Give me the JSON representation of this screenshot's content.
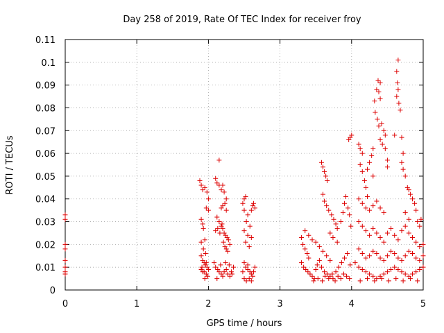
{
  "chart_data": {
    "type": "scatter",
    "title": "Day 258 of 2019, Rate Of TEC Index for receiver froy",
    "xlabel": "GPS time / hours",
    "ylabel": "ROTI / TECUs",
    "xlim": [
      0,
      5
    ],
    "ylim": [
      0,
      0.11
    ],
    "xticks": [
      0,
      1,
      2,
      3,
      4,
      5
    ],
    "xtick_labels": [
      "0",
      "1",
      "2",
      "3",
      "4",
      "5"
    ],
    "yticks": [
      0,
      0.01,
      0.02,
      0.03,
      0.04,
      0.05,
      0.06,
      0.07,
      0.08,
      0.09,
      0.1,
      0.11
    ],
    "ytick_labels": [
      "0",
      "0.01",
      "0.02",
      "0.03",
      "0.04",
      "0.05",
      "0.06",
      "0.07",
      "0.08",
      "0.09",
      "0.1",
      "0.11"
    ],
    "grid": true,
    "marker": "+",
    "color": "#dd0000",
    "series": [
      {
        "name": "ROTI",
        "points": [
          [
            0.0,
            0.033
          ],
          [
            0.0,
            0.031
          ],
          [
            0.0,
            0.02
          ],
          [
            0.0,
            0.018
          ],
          [
            0.0,
            0.013
          ],
          [
            0.0,
            0.01
          ],
          [
            0.0,
            0.008
          ],
          [
            0.0,
            0.007
          ],
          [
            1.88,
            0.048
          ],
          [
            1.9,
            0.046
          ],
          [
            1.92,
            0.044
          ],
          [
            1.95,
            0.045
          ],
          [
            1.98,
            0.043
          ],
          [
            2.0,
            0.04
          ],
          [
            1.97,
            0.036
          ],
          [
            2.0,
            0.035
          ],
          [
            1.9,
            0.031
          ],
          [
            1.92,
            0.029
          ],
          [
            1.93,
            0.027
          ],
          [
            1.95,
            0.022
          ],
          [
            1.9,
            0.021
          ],
          [
            1.93,
            0.018
          ],
          [
            1.96,
            0.016
          ],
          [
            1.9,
            0.015
          ],
          [
            1.92,
            0.013
          ],
          [
            1.94,
            0.012
          ],
          [
            1.96,
            0.011
          ],
          [
            1.98,
            0.01
          ],
          [
            1.9,
            0.009
          ],
          [
            1.92,
            0.008
          ],
          [
            1.94,
            0.008
          ],
          [
            1.97,
            0.007
          ],
          [
            1.99,
            0.006
          ],
          [
            2.0,
            0.009
          ],
          [
            1.95,
            0.005
          ],
          [
            1.91,
            0.01
          ],
          [
            1.97,
            0.012
          ],
          [
            2.15,
            0.057
          ],
          [
            2.1,
            0.049
          ],
          [
            2.12,
            0.047
          ],
          [
            2.15,
            0.046
          ],
          [
            2.18,
            0.044
          ],
          [
            2.2,
            0.046
          ],
          [
            2.22,
            0.043
          ],
          [
            2.25,
            0.04
          ],
          [
            2.2,
            0.037
          ],
          [
            2.23,
            0.038
          ],
          [
            2.18,
            0.036
          ],
          [
            2.25,
            0.035
          ],
          [
            2.12,
            0.032
          ],
          [
            2.15,
            0.03
          ],
          [
            2.18,
            0.028
          ],
          [
            2.2,
            0.027
          ],
          [
            2.22,
            0.025
          ],
          [
            2.24,
            0.024
          ],
          [
            2.26,
            0.023
          ],
          [
            2.28,
            0.022
          ],
          [
            2.1,
            0.026
          ],
          [
            2.13,
            0.027
          ],
          [
            2.16,
            0.025
          ],
          [
            2.19,
            0.029
          ],
          [
            2.21,
            0.021
          ],
          [
            2.23,
            0.019
          ],
          [
            2.25,
            0.018
          ],
          [
            2.27,
            0.017
          ],
          [
            2.3,
            0.02
          ],
          [
            2.08,
            0.012
          ],
          [
            2.1,
            0.01
          ],
          [
            2.13,
            0.009
          ],
          [
            2.15,
            0.008
          ],
          [
            2.18,
            0.007
          ],
          [
            2.2,
            0.006
          ],
          [
            2.22,
            0.008
          ],
          [
            2.25,
            0.009
          ],
          [
            2.27,
            0.007
          ],
          [
            2.3,
            0.006
          ],
          [
            2.32,
            0.008
          ],
          [
            2.35,
            0.01
          ],
          [
            2.12,
            0.005
          ],
          [
            2.17,
            0.011
          ],
          [
            2.24,
            0.012
          ],
          [
            2.29,
            0.011
          ],
          [
            2.33,
            0.007
          ],
          [
            2.5,
            0.04
          ],
          [
            2.52,
            0.041
          ],
          [
            2.48,
            0.038
          ],
          [
            2.5,
            0.035
          ],
          [
            2.55,
            0.033
          ],
          [
            2.53,
            0.03
          ],
          [
            2.58,
            0.028
          ],
          [
            2.5,
            0.026
          ],
          [
            2.55,
            0.024
          ],
          [
            2.6,
            0.023
          ],
          [
            2.52,
            0.021
          ],
          [
            2.57,
            0.019
          ],
          [
            2.62,
            0.037
          ],
          [
            2.6,
            0.035
          ],
          [
            2.63,
            0.038
          ],
          [
            2.65,
            0.036
          ],
          [
            2.5,
            0.012
          ],
          [
            2.52,
            0.01
          ],
          [
            2.55,
            0.009
          ],
          [
            2.58,
            0.008
          ],
          [
            2.6,
            0.007
          ],
          [
            2.62,
            0.006
          ],
          [
            2.5,
            0.005
          ],
          [
            2.53,
            0.004
          ],
          [
            2.57,
            0.005
          ],
          [
            2.6,
            0.004
          ],
          [
            2.63,
            0.008
          ],
          [
            2.65,
            0.01
          ],
          [
            2.48,
            0.008
          ],
          [
            2.55,
            0.011
          ],
          [
            3.3,
            0.023
          ],
          [
            3.32,
            0.02
          ],
          [
            3.35,
            0.018
          ],
          [
            3.38,
            0.016
          ],
          [
            3.4,
            0.014
          ],
          [
            3.3,
            0.012
          ],
          [
            3.33,
            0.01
          ],
          [
            3.36,
            0.009
          ],
          [
            3.39,
            0.008
          ],
          [
            3.42,
            0.007
          ],
          [
            3.45,
            0.006
          ],
          [
            3.48,
            0.005
          ],
          [
            3.5,
            0.009
          ],
          [
            3.52,
            0.011
          ],
          [
            3.55,
            0.013
          ],
          [
            3.35,
            0.026
          ],
          [
            3.4,
            0.024
          ],
          [
            3.45,
            0.022
          ],
          [
            3.5,
            0.021
          ],
          [
            3.55,
            0.019
          ],
          [
            3.6,
            0.017
          ],
          [
            3.65,
            0.015
          ],
          [
            3.7,
            0.013
          ],
          [
            3.58,
            0.01
          ],
          [
            3.62,
            0.008
          ],
          [
            3.66,
            0.007
          ],
          [
            3.7,
            0.006
          ],
          [
            3.74,
            0.005
          ],
          [
            3.78,
            0.008
          ],
          [
            3.82,
            0.01
          ],
          [
            3.86,
            0.012
          ],
          [
            3.9,
            0.014
          ],
          [
            3.94,
            0.016
          ],
          [
            3.98,
            0.011
          ],
          [
            3.47,
            0.004
          ],
          [
            3.53,
            0.005
          ],
          [
            3.59,
            0.004
          ],
          [
            3.63,
            0.006
          ],
          [
            3.68,
            0.005
          ],
          [
            3.73,
            0.007
          ],
          [
            3.77,
            0.004
          ],
          [
            3.81,
            0.006
          ],
          [
            3.85,
            0.005
          ],
          [
            3.89,
            0.007
          ],
          [
            3.93,
            0.006
          ],
          [
            3.97,
            0.005
          ],
          [
            3.58,
            0.056
          ],
          [
            3.6,
            0.054
          ],
          [
            3.62,
            0.052
          ],
          [
            3.64,
            0.05
          ],
          [
            3.66,
            0.048
          ],
          [
            3.6,
            0.042
          ],
          [
            3.62,
            0.039
          ],
          [
            3.65,
            0.037
          ],
          [
            3.68,
            0.035
          ],
          [
            3.72,
            0.033
          ],
          [
            3.75,
            0.031
          ],
          [
            3.78,
            0.029
          ],
          [
            3.8,
            0.027
          ],
          [
            3.7,
            0.025
          ],
          [
            3.74,
            0.023
          ],
          [
            3.8,
            0.021
          ],
          [
            3.85,
            0.03
          ],
          [
            3.88,
            0.034
          ],
          [
            3.9,
            0.038
          ],
          [
            3.92,
            0.041
          ],
          [
            3.95,
            0.036
          ],
          [
            3.97,
            0.033
          ],
          [
            3.99,
            0.028
          ],
          [
            3.96,
            0.066
          ],
          [
            3.98,
            0.067
          ],
          [
            4.0,
            0.068
          ],
          [
            4.1,
            0.064
          ],
          [
            4.12,
            0.062
          ],
          [
            4.15,
            0.06
          ],
          [
            4.12,
            0.055
          ],
          [
            4.15,
            0.052
          ],
          [
            4.18,
            0.048
          ],
          [
            4.2,
            0.045
          ],
          [
            4.22,
            0.041
          ],
          [
            4.1,
            0.04
          ],
          [
            4.15,
            0.038
          ],
          [
            4.2,
            0.036
          ],
          [
            4.25,
            0.035
          ],
          [
            4.3,
            0.037
          ],
          [
            4.35,
            0.039
          ],
          [
            4.4,
            0.036
          ],
          [
            4.45,
            0.034
          ],
          [
            4.1,
            0.03
          ],
          [
            4.15,
            0.028
          ],
          [
            4.2,
            0.026
          ],
          [
            4.25,
            0.024
          ],
          [
            4.3,
            0.027
          ],
          [
            4.35,
            0.025
          ],
          [
            4.4,
            0.023
          ],
          [
            4.45,
            0.021
          ],
          [
            4.5,
            0.025
          ],
          [
            4.55,
            0.027
          ],
          [
            4.6,
            0.024
          ],
          [
            4.65,
            0.022
          ],
          [
            4.7,
            0.026
          ],
          [
            4.75,
            0.028
          ],
          [
            4.8,
            0.025
          ],
          [
            4.85,
            0.023
          ],
          [
            4.9,
            0.021
          ],
          [
            4.95,
            0.019
          ],
          [
            5.0,
            0.02
          ],
          [
            4.1,
            0.018
          ],
          [
            4.15,
            0.016
          ],
          [
            4.2,
            0.014
          ],
          [
            4.25,
            0.015
          ],
          [
            4.3,
            0.017
          ],
          [
            4.35,
            0.016
          ],
          [
            4.4,
            0.014
          ],
          [
            4.45,
            0.013
          ],
          [
            4.5,
            0.015
          ],
          [
            4.55,
            0.017
          ],
          [
            4.6,
            0.016
          ],
          [
            4.65,
            0.014
          ],
          [
            4.7,
            0.013
          ],
          [
            4.75,
            0.015
          ],
          [
            4.8,
            0.017
          ],
          [
            4.85,
            0.016
          ],
          [
            4.9,
            0.014
          ],
          [
            4.95,
            0.013
          ],
          [
            5.0,
            0.015
          ],
          [
            4.05,
            0.012
          ],
          [
            4.1,
            0.01
          ],
          [
            4.15,
            0.009
          ],
          [
            4.2,
            0.008
          ],
          [
            4.25,
            0.007
          ],
          [
            4.3,
            0.006
          ],
          [
            4.35,
            0.005
          ],
          [
            4.4,
            0.006
          ],
          [
            4.45,
            0.007
          ],
          [
            4.5,
            0.008
          ],
          [
            4.55,
            0.009
          ],
          [
            4.6,
            0.01
          ],
          [
            4.65,
            0.009
          ],
          [
            4.7,
            0.008
          ],
          [
            4.75,
            0.007
          ],
          [
            4.8,
            0.006
          ],
          [
            4.85,
            0.007
          ],
          [
            4.9,
            0.008
          ],
          [
            4.95,
            0.009
          ],
          [
            5.0,
            0.01
          ],
          [
            4.12,
            0.004
          ],
          [
            4.22,
            0.005
          ],
          [
            4.32,
            0.004
          ],
          [
            4.42,
            0.005
          ],
          [
            4.52,
            0.004
          ],
          [
            4.62,
            0.005
          ],
          [
            4.72,
            0.004
          ],
          [
            4.82,
            0.005
          ],
          [
            4.92,
            0.004
          ],
          [
            4.32,
            0.083
          ],
          [
            4.35,
            0.088
          ],
          [
            4.37,
            0.092
          ],
          [
            4.4,
            0.091
          ],
          [
            4.38,
            0.087
          ],
          [
            4.4,
            0.084
          ],
          [
            4.33,
            0.078
          ],
          [
            4.36,
            0.075
          ],
          [
            4.38,
            0.072
          ],
          [
            4.42,
            0.073
          ],
          [
            4.45,
            0.07
          ],
          [
            4.47,
            0.068
          ],
          [
            4.4,
            0.066
          ],
          [
            4.43,
            0.064
          ],
          [
            4.47,
            0.062
          ],
          [
            4.5,
            0.057
          ],
          [
            4.5,
            0.054
          ],
          [
            4.3,
            0.062
          ],
          [
            4.28,
            0.059
          ],
          [
            4.25,
            0.056
          ],
          [
            4.22,
            0.053
          ],
          [
            4.3,
            0.05
          ],
          [
            4.65,
            0.101
          ],
          [
            4.63,
            0.096
          ],
          [
            4.64,
            0.091
          ],
          [
            4.65,
            0.088
          ],
          [
            4.63,
            0.085
          ],
          [
            4.66,
            0.082
          ],
          [
            4.68,
            0.079
          ],
          [
            4.6,
            0.068
          ],
          [
            4.7,
            0.067
          ],
          [
            4.72,
            0.06
          ],
          [
            4.7,
            0.056
          ],
          [
            4.72,
            0.053
          ],
          [
            4.75,
            0.05
          ],
          [
            4.78,
            0.045
          ],
          [
            4.8,
            0.044
          ],
          [
            4.82,
            0.042
          ],
          [
            4.85,
            0.04
          ],
          [
            4.88,
            0.038
          ],
          [
            4.9,
            0.035
          ],
          [
            4.92,
            0.03
          ],
          [
            4.95,
            0.028
          ],
          [
            4.97,
            0.031
          ],
          [
            4.75,
            0.034
          ],
          [
            4.8,
            0.031
          ]
        ]
      }
    ]
  }
}
